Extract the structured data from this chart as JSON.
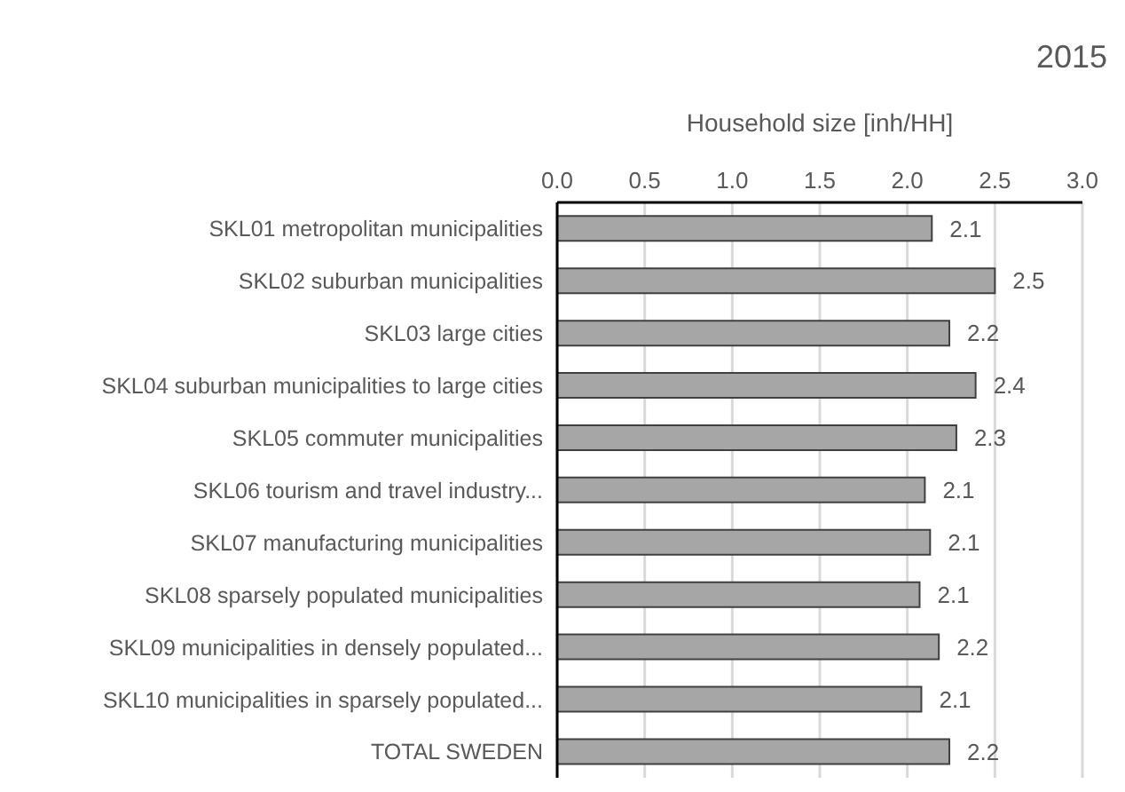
{
  "chart_data": {
    "type": "bar",
    "orientation": "horizontal",
    "title": "2015",
    "xlabel": "Household size [inh/HH]",
    "categories": [
      "SKL01 metropolitan municipalities",
      "SKL02 suburban municipalities",
      "SKL03 large cities",
      "SKL04 suburban municipalities to large cities",
      "SKL05 commuter municipalities",
      "SKL06 tourism and travel industry...",
      "SKL07 manufacturing municipalities",
      "SKL08 sparsely populated municipalities",
      "SKL09 municipalities in densely populated...",
      "SKL10 municipalities in sparsely populated...",
      "TOTAL SWEDEN"
    ],
    "values": [
      2.14,
      2.5,
      2.24,
      2.39,
      2.28,
      2.1,
      2.13,
      2.07,
      2.18,
      2.08,
      2.24
    ],
    "value_labels": [
      "2.1",
      "2.5",
      "2.2",
      "2.4",
      "2.3",
      "2.1",
      "2.1",
      "2.1",
      "2.2",
      "2.1",
      "2.2"
    ],
    "color": "#a6a6a6",
    "xlim": [
      0,
      3
    ],
    "xticks": [
      {
        "value": 0,
        "label": "0.0"
      },
      {
        "value": 0.5,
        "label": "0.5"
      },
      {
        "value": 1,
        "label": "1.0"
      },
      {
        "value": 1.5,
        "label": "1.5"
      },
      {
        "value": 2,
        "label": "2.0"
      },
      {
        "value": 2.5,
        "label": "2.5"
      },
      {
        "value": 3,
        "label": "3.0"
      }
    ],
    "grid": "x"
  }
}
